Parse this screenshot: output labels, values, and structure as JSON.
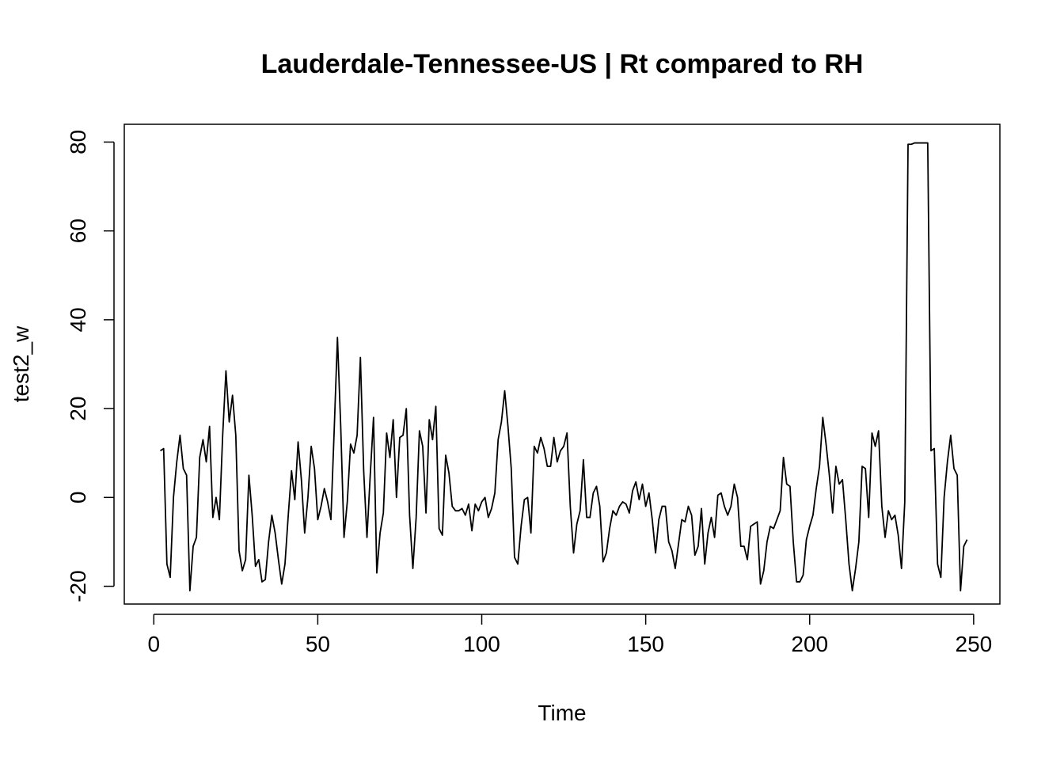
{
  "chart_data": {
    "type": "line",
    "title": "Lauderdale-Tennessee-US | Rt compared to RH",
    "xlabel": "Time",
    "ylabel": "test2_w",
    "xlim": [
      -9,
      258
    ],
    "ylim": [
      -24,
      84
    ],
    "xticks": [
      0,
      50,
      100,
      150,
      200,
      250
    ],
    "yticks": [
      -20,
      0,
      20,
      40,
      60,
      80
    ],
    "grid": false,
    "series": [
      {
        "x_start": 2,
        "values": [
          10.5,
          11,
          -15,
          -18,
          0,
          8,
          14,
          6.5,
          5,
          -21,
          -11,
          -9,
          9,
          13,
          8,
          16,
          -4.5,
          0,
          -5,
          14,
          28.5,
          17,
          23,
          14,
          -12,
          -16.5,
          -14,
          5,
          -4,
          -15.5,
          -14,
          -19,
          -18.5,
          -10,
          -4,
          -8,
          -14,
          -19.5,
          -15,
          -4,
          6,
          -0.5,
          12.5,
          4,
          -8,
          0,
          11.5,
          6.5,
          -5,
          -2,
          2,
          -1,
          -5,
          15,
          36,
          16,
          -9,
          -1,
          12,
          10,
          14,
          31.5,
          6,
          -9,
          5,
          18,
          -17,
          -8,
          -3.5,
          14.5,
          9,
          17.5,
          0,
          13.5,
          14,
          20,
          -4,
          -16,
          -4.5,
          15,
          11.5,
          -3.5,
          17.5,
          13,
          20.5,
          -7,
          -8.5,
          9.5,
          5.5,
          -2,
          -3,
          -3,
          -2.5,
          -4,
          -1.5,
          -7.5,
          -1.5,
          -3,
          -1,
          0,
          -4.5,
          -2.5,
          1,
          13,
          17,
          24,
          16,
          6.5,
          -13.5,
          -15,
          -6.5,
          -0.5,
          0,
          -8,
          11.5,
          10,
          13.5,
          11,
          7,
          7,
          13.5,
          8,
          10.5,
          11.5,
          14.5,
          -2,
          -12.5,
          -6,
          -3,
          8.5,
          -4.5,
          -4.5,
          1,
          2.5,
          -2,
          -14.5,
          -12.5,
          -7,
          -3,
          -4,
          -2,
          -1,
          -1.5,
          -3.5,
          1.5,
          3.5,
          -0.5,
          3,
          -2,
          1,
          -5,
          -12.5,
          -5,
          -2,
          -2,
          -10,
          -12,
          -16,
          -10.5,
          -5,
          -5.5,
          -2,
          -4,
          -13,
          -11,
          -2.5,
          -15,
          -8,
          -4.5,
          -9,
          0.5,
          1,
          -2,
          -4,
          -2,
          3,
          0,
          -11,
          -11,
          -14,
          -6.5,
          -6,
          -5.5,
          -19.5,
          -16.5,
          -10,
          -6.5,
          -7,
          -5,
          -3,
          9,
          3,
          2.5,
          -10,
          -19,
          -19,
          -17.5,
          -9.5,
          -6.5,
          -4,
          2,
          7,
          18,
          12,
          5,
          -3.5,
          7,
          3,
          4,
          -5,
          -15,
          -21,
          -16,
          -10,
          7,
          6.5,
          -4.5,
          14.5,
          11.5,
          15,
          -2,
          -9,
          -3,
          -5,
          -4,
          -8.5,
          -16,
          -1,
          79.5,
          79.5,
          79.8,
          79.8,
          79.8,
          79.8,
          79.8,
          10.5,
          11,
          -15,
          -18,
          0,
          8,
          14,
          6.5,
          5,
          -21,
          -11,
          -9.5
        ]
      }
    ]
  }
}
